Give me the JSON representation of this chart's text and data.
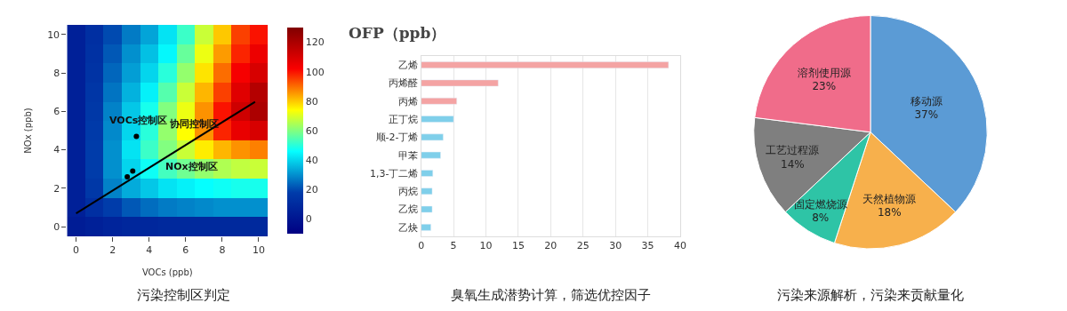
{
  "chart_data": [
    {
      "type": "heatmap",
      "xlabel": "VOCs (ppb)",
      "ylabel": "NOx (ppb)",
      "x": [
        0,
        1,
        2,
        3,
        4,
        5,
        6,
        7,
        8,
        9,
        10
      ],
      "xlim": [
        -0.5,
        10.5
      ],
      "xticks": [
        0,
        2,
        4,
        6,
        8,
        10
      ],
      "ylim": [
        -0.5,
        10.5
      ],
      "yticks": [
        0,
        2,
        4,
        6,
        8,
        10
      ],
      "cells": [
        [
          5,
          12,
          20,
          27,
          33,
          42,
          52,
          68,
          80,
          95,
          100
        ],
        [
          5,
          13,
          22,
          30,
          37,
          45,
          57,
          72,
          85,
          98,
          105
        ],
        [
          5,
          14,
          24,
          32,
          40,
          50,
          62,
          77,
          90,
          103,
          110
        ],
        [
          5,
          15,
          26,
          35,
          44,
          55,
          68,
          82,
          95,
          108,
          118
        ],
        [
          5,
          16,
          28,
          38,
          48,
          60,
          72,
          86,
          100,
          112,
          120
        ],
        [
          5,
          17,
          29,
          40,
          50,
          62,
          74,
          86,
          98,
          106,
          110
        ],
        [
          5,
          18,
          30,
          42,
          52,
          60,
          68,
          76,
          82,
          86,
          88
        ],
        [
          5,
          18,
          30,
          40,
          47,
          53,
          58,
          62,
          65,
          67,
          68
        ],
        [
          5,
          16,
          28,
          34,
          38,
          42,
          44,
          46,
          47,
          48,
          48
        ],
        [
          5,
          12,
          18,
          22,
          25,
          27,
          28,
          29,
          30,
          30,
          30
        ],
        [
          3,
          5,
          7,
          8,
          8,
          9,
          9,
          9,
          9,
          9,
          9
        ]
      ],
      "clim": [
        -10,
        130
      ],
      "cticks": [
        0,
        20,
        40,
        60,
        80,
        100,
        120
      ],
      "series": [
        {
          "type": "line",
          "color": "#000000",
          "x": [
            0,
            9.8
          ],
          "values": [
            0.7,
            6.5
          ]
        },
        {
          "type": "scatter",
          "color": "#000000",
          "x": [
            2.8,
            3.1,
            3.3
          ],
          "values": [
            2.6,
            2.9,
            4.7
          ]
        }
      ],
      "annotations": [
        "污染控制区判定",
        "VOCs控制区",
        "协同控制区",
        "NOx控制区"
      ]
    },
    {
      "type": "bar",
      "orientation": "horizontal",
      "title": "OFP（ppb）",
      "categories": [
        "乙烯",
        "丙烯醛",
        "丙烯",
        "正丁烷",
        "顺-2-丁烯",
        "甲苯",
        "1,3-丁二烯",
        "丙烷",
        "乙烷",
        "乙炔"
      ],
      "values": [
        38.2,
        11.9,
        5.5,
        5.0,
        3.4,
        3.0,
        1.8,
        1.7,
        1.7,
        1.5
      ],
      "colors": [
        "#f4a3a3",
        "#f4a3a3",
        "#f4a3a3",
        "#7fcfea",
        "#7fcfea",
        "#7fcfea",
        "#7fcfea",
        "#7fcfea",
        "#7fcfea",
        "#7fcfea"
      ],
      "xlim": [
        0,
        40
      ],
      "xticks": [
        0,
        5,
        10,
        15,
        20,
        25,
        30,
        35,
        40
      ],
      "grid": "x",
      "annotations": [
        "臭氧生成潜势计算，筛选优控因子"
      ]
    },
    {
      "type": "pie",
      "categories": [
        "移动源",
        "天然植物源",
        "固定燃烧源",
        "工艺过程源",
        "溶剂使用源"
      ],
      "values": [
        37,
        18,
        8,
        14,
        23
      ],
      "value_labels": [
        "37%",
        "18%",
        "8%",
        "14%",
        "23%"
      ],
      "colors": [
        "#5b9bd5",
        "#f7b04c",
        "#2ec4a6",
        "#7f7f7f",
        "#f06c8a"
      ],
      "annotations": [
        "污染来源解析，污染来贡献量化"
      ]
    }
  ]
}
